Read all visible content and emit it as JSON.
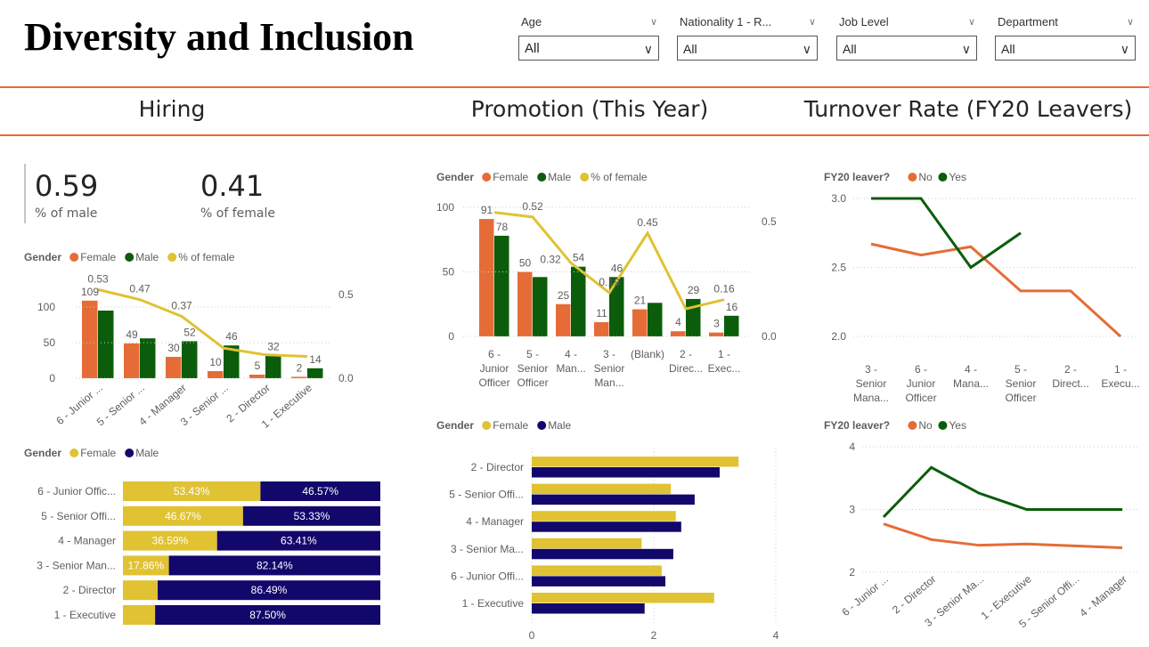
{
  "header": {
    "title": "Diversity and Inclusion",
    "filters": [
      {
        "label": "Age",
        "value": "All"
      },
      {
        "label": "Nationality 1 - R...",
        "value": "All"
      },
      {
        "label": "Job Level",
        "value": "All"
      },
      {
        "label": "Department",
        "value": "All"
      }
    ]
  },
  "sections": [
    "Hiring",
    "Promotion (This Year)",
    "Turnover Rate (FY20 Leavers)"
  ],
  "kpis": [
    {
      "value": "0.59",
      "label": "% of male"
    },
    {
      "value": "0.41",
      "label": "% of female"
    }
  ],
  "colors": {
    "accent": "#E66C37",
    "female_bar": "#E66C37",
    "male_bar": "#0B5D0B",
    "pct_line": "#E0C232",
    "female_stack": "#E0C232",
    "male_stack": "#12076B"
  },
  "chart_data": [
    {
      "id": "hiring-combo",
      "type": "bar",
      "legend_title": "Gender",
      "legend": [
        "Female",
        "Male",
        "% of female"
      ],
      "categories": [
        "6 - Junior ...",
        "5 - Senior ...",
        "4 - Manager",
        "3 - Senior ...",
        "2 - Director",
        "1 - Executive"
      ],
      "series": [
        {
          "name": "Female",
          "values": [
            109,
            49,
            30,
            10,
            5,
            2
          ],
          "labels": [
            "109",
            "49",
            "30",
            "10",
            "5",
            "2"
          ]
        },
        {
          "name": "Male",
          "values": [
            95,
            56,
            52,
            46,
            32,
            14
          ],
          "labels": [
            null,
            null,
            "52",
            "46",
            "32",
            "14"
          ]
        },
        {
          "name": "% of female",
          "type": "line",
          "axis": "right",
          "values": [
            0.53,
            0.47,
            0.37,
            0.18,
            0.14,
            0.13
          ],
          "labels": [
            "0.53",
            "0.47",
            "0.37",
            null,
            null,
            null
          ]
        }
      ],
      "y_ticks": [
        "0",
        "50",
        "100"
      ],
      "y_tick_values": [
        0,
        50,
        100
      ],
      "y2_ticks": [
        "0.0",
        "0.5"
      ],
      "y2_tick_values": [
        0,
        0.5
      ],
      "grid": true,
      "legend_position": "top-left"
    },
    {
      "id": "promotion-combo",
      "type": "bar",
      "legend_title": "Gender",
      "legend": [
        "Female",
        "Male",
        "% of female"
      ],
      "categories": [
        [
          "6 -",
          "Junior",
          "Officer"
        ],
        [
          "5 -",
          "Senior",
          "Officer"
        ],
        [
          "4 -",
          "Man..."
        ],
        [
          "3 -",
          "Senior",
          "Man..."
        ],
        [
          "(Blank)"
        ],
        [
          "2 -",
          "Direc..."
        ],
        [
          "1 -",
          "Exec..."
        ]
      ],
      "series": [
        {
          "name": "Female",
          "values": [
            91,
            50,
            25,
            11,
            21,
            4,
            3
          ],
          "labels": [
            "91",
            "50",
            "25",
            "11",
            "21",
            "4",
            "3"
          ]
        },
        {
          "name": "Male",
          "values": [
            78,
            46,
            54,
            46,
            26,
            29,
            16
          ],
          "labels": [
            "78",
            null,
            "54",
            "46",
            null,
            "29",
            "16"
          ]
        },
        {
          "name": "% of female",
          "type": "line",
          "axis": "right",
          "values": [
            0.54,
            0.52,
            0.32,
            0.19,
            0.45,
            0.12,
            0.16
          ],
          "labels": [
            null,
            "0.52",
            "0.32",
            "0.19",
            "0.45",
            null,
            "0.16"
          ]
        }
      ],
      "y_ticks": [
        "0",
        "50",
        "100"
      ],
      "y_tick_values": [
        0,
        50,
        100
      ],
      "y2_ticks": [
        "0.0",
        "0.5"
      ],
      "y2_tick_values": [
        0,
        0.5
      ],
      "grid": true,
      "legend_position": "top-left"
    },
    {
      "id": "turnover-line-1",
      "type": "line",
      "legend_title": "FY20 leaver?",
      "legend": [
        "No",
        "Yes"
      ],
      "categories": [
        [
          "3 -",
          "Senior",
          "Mana..."
        ],
        [
          "6 -",
          "Junior",
          "Officer"
        ],
        [
          "4 -",
          "Mana..."
        ],
        [
          "5 -",
          "Senior",
          "Officer"
        ],
        [
          "2 -",
          "Direct..."
        ],
        [
          "1 -",
          "Execu..."
        ]
      ],
      "series": [
        {
          "name": "No",
          "values": [
            2.67,
            2.59,
            2.65,
            2.33,
            2.33,
            2.0
          ]
        },
        {
          "name": "Yes",
          "values": [
            3.0,
            3.0,
            2.5,
            2.75,
            null,
            null
          ]
        }
      ],
      "y_ticks": [
        "2.0",
        "2.5",
        "3.0"
      ],
      "y_tick_values": [
        2.0,
        2.5,
        3.0
      ],
      "grid": true,
      "legend_position": "top-left"
    },
    {
      "id": "hiring-stacked",
      "type": "bar",
      "stacked_percent": true,
      "legend_title": "Gender",
      "legend": [
        "Female",
        "Male"
      ],
      "categories": [
        "6 - Junior Offic...",
        "5 - Senior Offi...",
        "4 - Manager",
        "3 - Senior Man...",
        "2 - Director",
        "1 - Executive"
      ],
      "series": [
        {
          "name": "Female",
          "values": [
            53.43,
            46.67,
            36.59,
            17.86,
            13.51,
            12.5
          ],
          "labels": [
            "53.43%",
            "46.67%",
            "36.59%",
            "17.86%",
            null,
            null
          ]
        },
        {
          "name": "Male",
          "values": [
            46.57,
            53.33,
            63.41,
            82.14,
            86.49,
            87.5
          ],
          "labels": [
            "46.57%",
            "53.33%",
            "63.41%",
            "82.14%",
            "86.49%",
            "87.50%"
          ]
        }
      ],
      "legend_position": "top-left"
    },
    {
      "id": "promotion-hbar",
      "type": "bar",
      "orientation": "horizontal",
      "legend_title": "Gender",
      "legend": [
        "Female",
        "Male"
      ],
      "categories": [
        "2 - Director",
        "5 - Senior Offi...",
        "4 - Manager",
        "3 - Senior Ma...",
        "6 - Junior Offi...",
        "1 - Executive"
      ],
      "series": [
        {
          "name": "Female",
          "values": [
            3.39,
            2.28,
            2.36,
            1.8,
            2.13,
            2.99
          ]
        },
        {
          "name": "Male",
          "values": [
            3.08,
            2.67,
            2.45,
            2.32,
            2.19,
            1.85
          ]
        }
      ],
      "x_ticks": [
        "0",
        "2",
        "4"
      ],
      "x_tick_values": [
        0,
        2,
        4
      ],
      "grid": true,
      "legend_position": "top-left"
    },
    {
      "id": "turnover-line-2",
      "type": "line",
      "legend_title": "FY20 leaver?",
      "legend": [
        "No",
        "Yes"
      ],
      "categories": [
        "6 - Junior ...",
        "2 - Director",
        "3 - Senior Ma...",
        "1 - Executive",
        "5 - Senior Offi...",
        "4 - Manager"
      ],
      "series": [
        {
          "name": "No",
          "values": [
            2.77,
            2.52,
            2.43,
            2.45,
            2.42,
            2.39
          ]
        },
        {
          "name": "Yes",
          "values": [
            2.88,
            3.67,
            3.26,
            3.0,
            3.0,
            3.0
          ]
        }
      ],
      "y_ticks": [
        "2",
        "3",
        "4"
      ],
      "y_tick_values": [
        2,
        3,
        4
      ],
      "grid": true,
      "legend_position": "top-left"
    }
  ]
}
